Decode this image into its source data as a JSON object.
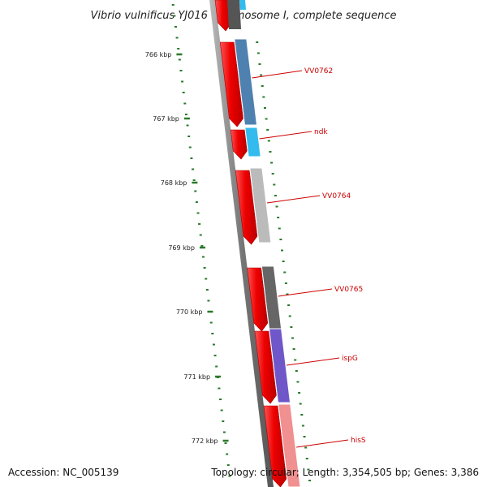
{
  "title": "Vibrio vulnificus YJ016 chromosome I, complete sequence",
  "footer": {
    "accession": "Accession: NC_005139",
    "summary": "Topology: circular; Length: 3,354,505 bp; Genes: 3,386"
  },
  "ruler": {
    "labels": [
      "766 kbp",
      "767 kbp",
      "768 kbp",
      "769 kbp",
      "770 kbp",
      "771 kbp",
      "772 kbp"
    ]
  },
  "genes": [
    {
      "name": "VV0762",
      "color": "#4f81b0"
    },
    {
      "name": "ndk",
      "color": "#33bbee"
    },
    {
      "name": "VV0764",
      "color": "#bbbbbb"
    },
    {
      "name": "VV0765",
      "color": "#666666"
    },
    {
      "name": "ispG",
      "color": "#6f57c9"
    },
    {
      "name": "hisS",
      "color": "#f09090"
    }
  ],
  "colors": {
    "cds": "#ee0000",
    "backbone": "#777777",
    "tick": "#2a7a2a",
    "label": "#cc0000"
  }
}
